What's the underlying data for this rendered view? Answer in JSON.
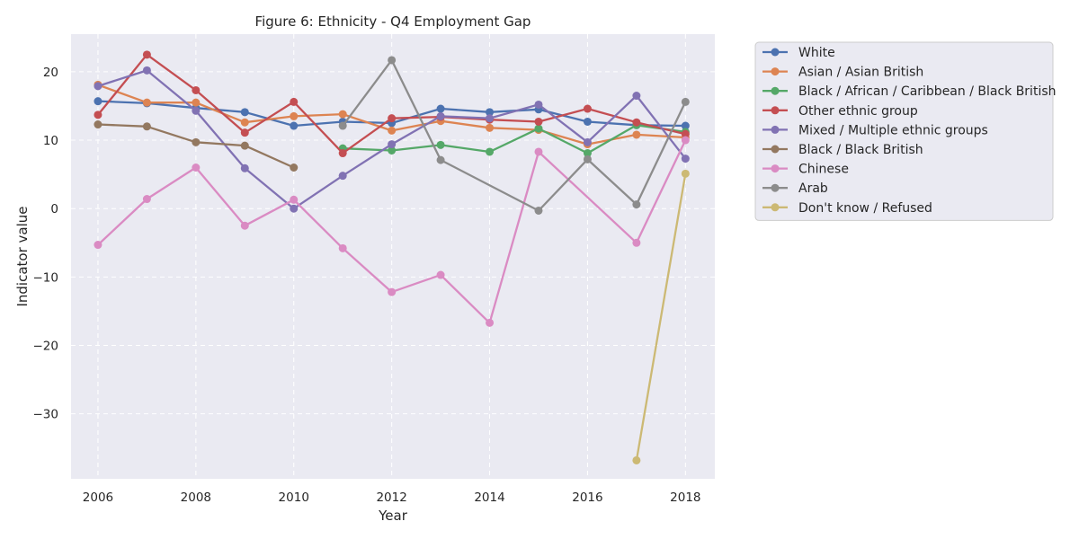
{
  "chart_data": {
    "type": "line",
    "title": "Figure 6: Ethnicity - Q4 Employment Gap",
    "xlabel": "Year",
    "ylabel": "Indicator value",
    "xlim": [
      2005.45,
      2018.6
    ],
    "ylim": [
      -39.5,
      25.5
    ],
    "xticks": [
      2006,
      2008,
      2010,
      2012,
      2014,
      2016,
      2018
    ],
    "yticks": [
      -30,
      -20,
      -10,
      0,
      10,
      20
    ],
    "grid": true,
    "legend_position": "outside-right-top",
    "x": [
      2006,
      2007,
      2008,
      2009,
      2010,
      2011,
      2012,
      2013,
      2014,
      2015,
      2016,
      2017,
      2018
    ],
    "series": [
      {
        "name": "White",
        "color": "#4c72b0",
        "values": [
          15.7,
          15.4,
          14.7,
          14.1,
          12.1,
          12.7,
          12.5,
          14.6,
          14.1,
          14.5,
          12.7,
          12.2,
          12.1
        ]
      },
      {
        "name": "Asian / Asian British",
        "color": "#dd8452",
        "values": [
          18.1,
          15.5,
          15.5,
          12.6,
          13.5,
          13.8,
          11.4,
          12.8,
          11.8,
          11.5,
          9.4,
          10.8,
          10.4
        ]
      },
      {
        "name": "Black / African / Caribbean / Black British",
        "color": "#55a868",
        "values": [
          null,
          null,
          null,
          null,
          null,
          8.8,
          8.5,
          9.3,
          8.3,
          11.7,
          8.1,
          12.2,
          11.2
        ]
      },
      {
        "name": "Other ethnic group",
        "color": "#c44e52",
        "values": [
          13.7,
          22.5,
          17.3,
          11.1,
          15.6,
          8.1,
          13.2,
          13.4,
          13.0,
          12.7,
          14.6,
          12.6,
          10.9
        ]
      },
      {
        "name": "Mixed / Multiple ethnic groups",
        "color": "#8172b3",
        "values": [
          17.9,
          20.2,
          14.3,
          5.9,
          0.0,
          4.8,
          9.4,
          13.5,
          13.2,
          15.2,
          9.7,
          16.5,
          7.3
        ]
      },
      {
        "name": "Black / Black British",
        "color": "#937860",
        "values": [
          12.3,
          12.0,
          9.7,
          9.2,
          6.0,
          null,
          null,
          null,
          null,
          null,
          null,
          null,
          null
        ]
      },
      {
        "name": "Chinese",
        "color": "#da8bc3",
        "values": [
          -5.3,
          1.4,
          6.0,
          -2.5,
          1.3,
          -5.8,
          -12.2,
          -9.7,
          -16.7,
          8.3,
          null,
          -5.0,
          10.0
        ]
      },
      {
        "name": "Arab",
        "color": "#8c8c8c",
        "values": [
          null,
          null,
          null,
          null,
          null,
          12.1,
          21.7,
          7.1,
          null,
          -0.3,
          7.2,
          0.6,
          15.6
        ]
      },
      {
        "name": "Don't know / Refused",
        "color": "#ccb974",
        "values": [
          null,
          null,
          null,
          null,
          null,
          null,
          null,
          null,
          null,
          null,
          null,
          -36.8,
          5.1
        ]
      }
    ]
  }
}
